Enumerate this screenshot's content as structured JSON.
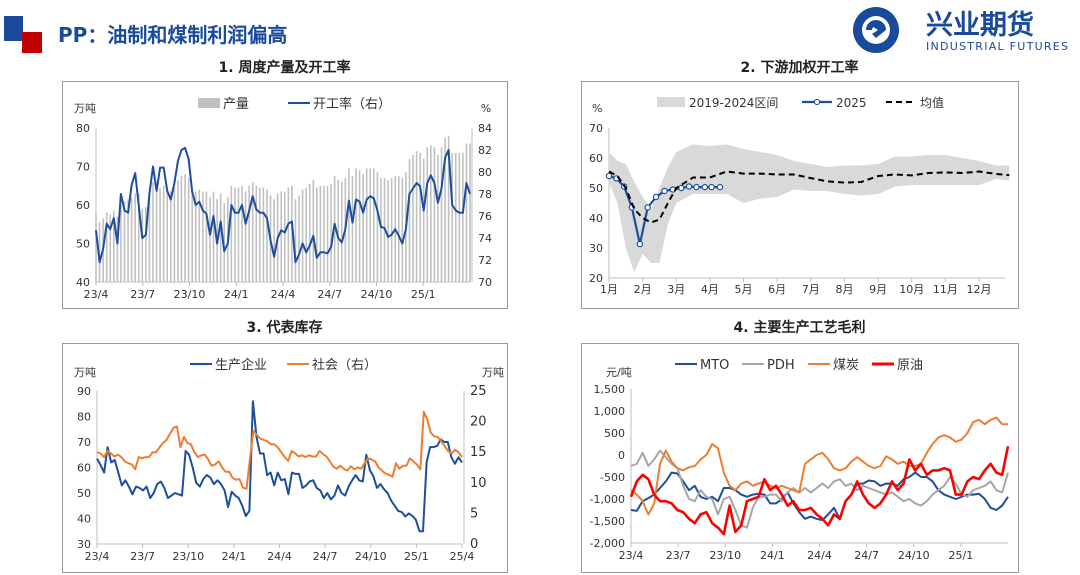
{
  "header": {
    "title": "PP：油制和煤制利润偏高",
    "logo_cn": "兴业期货",
    "logo_en": "INDUSTRIAL FUTURES",
    "colors": {
      "brand_blue": "#1a4a9c",
      "brand_red": "#c00000"
    }
  },
  "chart_data": [
    {
      "title": "1. 周度产量及开工率",
      "type": "bar+line",
      "ylabel": "万吨",
      "y2label": "%",
      "ylim": [
        40,
        80
      ],
      "yticks": [
        "80",
        "70",
        "60",
        "50",
        "40"
      ],
      "y2lim": [
        70,
        84
      ],
      "y2ticks": [
        "84",
        "82",
        "80",
        "78",
        "76",
        "74",
        "72",
        "70"
      ],
      "xticks": [
        "23/4",
        "23/7",
        "23/10",
        "24/1",
        "24/4",
        "24/7",
        "24/10",
        "25/1"
      ],
      "x_range": [
        "23/4",
        "25/4"
      ],
      "series": [
        {
          "name": "产量",
          "type": "bar",
          "axis": "left",
          "color": "#c0c0c0",
          "values": [
            58,
            55.5,
            56.5,
            58,
            57.5,
            58.5,
            57,
            60,
            61,
            61.5,
            62,
            63,
            63,
            59,
            59.5,
            62,
            66,
            64.5,
            64.5,
            65,
            64,
            63.5,
            64.5,
            66.5,
            67.5,
            68,
            67,
            64,
            63.5,
            64,
            63.5,
            63.5,
            62,
            63.5,
            61.5,
            63,
            60.5,
            62,
            65,
            64.5,
            64.5,
            65,
            63.5,
            65,
            66,
            65,
            64.5,
            64.5,
            64,
            62.5,
            61.5,
            63,
            63.5,
            63.5,
            64.5,
            65,
            61.5,
            62.5,
            64,
            64.5,
            65.5,
            66.5,
            64.5,
            65,
            65,
            65,
            65.5,
            67.5,
            66.5,
            66,
            67,
            69.5,
            67.5,
            69.5,
            69,
            68,
            69.5,
            69.5,
            69.5,
            68.5,
            67,
            67,
            66.5,
            67,
            67.5,
            67.5,
            67,
            68.5,
            72,
            73,
            74,
            73.5,
            72,
            75,
            75.5,
            75,
            73,
            75,
            77.5,
            78,
            73.5,
            73.5,
            73.5,
            73.5,
            76,
            76
          ]
        },
        {
          "name": "开工率（右）",
          "type": "line",
          "axis": "right",
          "color": "#1f4e9c",
          "values": [
            74.7,
            71.8,
            73,
            75.3,
            74.8,
            75.8,
            73.5,
            78,
            76.5,
            76.3,
            78.8,
            79.9,
            77,
            74,
            74.3,
            78,
            80.5,
            78.3,
            80.4,
            80.4,
            78.3,
            77.5,
            79,
            81,
            82,
            82.2,
            81.2,
            78.2,
            77,
            77.3,
            76.5,
            76.2,
            74.3,
            76,
            73.5,
            75.5,
            72.8,
            73.5,
            77,
            76.3,
            76.3,
            77,
            75.3,
            76.5,
            77.8,
            76.6,
            76.3,
            76.3,
            75.8,
            73.8,
            72.3,
            74,
            74.7,
            74.5,
            75.3,
            75.5,
            71.8,
            72.5,
            73.5,
            72.7,
            73.3,
            74.2,
            72.2,
            72.7,
            72.7,
            72.6,
            73.2,
            75.3,
            74,
            73.6,
            74.8,
            77.4,
            75.4,
            77.5,
            77.3,
            76.3,
            77.5,
            77.8,
            77.6,
            76.5,
            75,
            74.9,
            74.1,
            74.3,
            74.8,
            74.2,
            73.5,
            74.8,
            78,
            78.5,
            79,
            78.7,
            76.5,
            79,
            79.7,
            79,
            77.2,
            78.5,
            81.3,
            82,
            77,
            76.5,
            76.3,
            76.3,
            79,
            78
          ]
        }
      ]
    },
    {
      "title": "2. 下游加权开工率",
      "type": "line+band",
      "ylabel": "%",
      "ylim": [
        20,
        70
      ],
      "yticks": [
        "70",
        "60",
        "50",
        "40",
        "30",
        "20"
      ],
      "xticks": [
        "1月",
        "2月",
        "3月",
        "4月",
        "5月",
        "6月",
        "7月",
        "8月",
        "9月",
        "10月",
        "11月",
        "12月"
      ],
      "xlabel_unit": "month",
      "band": {
        "name": "2019-2024区间",
        "color": "#d9d9d9",
        "x": [
          1,
          1.25,
          1.5,
          1.75,
          2,
          2.25,
          2.5,
          2.75,
          3,
          3.5,
          4,
          4.5,
          5,
          5.5,
          6,
          6.5,
          7,
          7.5,
          8,
          8.5,
          9,
          9.5,
          10,
          10.5,
          11,
          11.5,
          12,
          12.5,
          12.9
        ],
        "upper": [
          62,
          59,
          58,
          52,
          47,
          43,
          50,
          57,
          62,
          64.5,
          64,
          64.5,
          63,
          62,
          61,
          59,
          58,
          57,
          57.5,
          57.5,
          58,
          60.5,
          60.5,
          61,
          61,
          60,
          59,
          57.5,
          57.5
        ],
        "lower": [
          52,
          45,
          30,
          22,
          28,
          25,
          25,
          38,
          45,
          48,
          48,
          48,
          45,
          46.5,
          47,
          49.5,
          49,
          49,
          48,
          47.5,
          48,
          50.5,
          51,
          51,
          51,
          51,
          51,
          53,
          52.5
        ]
      },
      "series": [
        {
          "name": "2025",
          "type": "line-marker",
          "color": "#1f4e9c",
          "x": [
            1,
            1.22,
            1.45,
            1.68,
            1.92,
            2.15,
            2.4,
            2.65,
            2.9,
            3.15,
            3.38,
            3.6,
            3.85,
            4.05,
            4.3
          ],
          "values": [
            54,
            53.2,
            50.5,
            43.5,
            31.3,
            43.5,
            47,
            49,
            49.5,
            50,
            50.5,
            50.3,
            50.3,
            50.3,
            50.3
          ]
        },
        {
          "name": "均值",
          "type": "dashed",
          "color": "#000000",
          "x": [
            1,
            1.25,
            1.5,
            1.75,
            2,
            2.25,
            2.5,
            2.75,
            3,
            3.5,
            4,
            4.5,
            5,
            5.5,
            6,
            6.5,
            7,
            7.5,
            8,
            8.5,
            9,
            9.5,
            10,
            10.5,
            11,
            11.5,
            12,
            12.5,
            12.9
          ],
          "values": [
            55.5,
            54,
            50,
            43,
            40,
            38.5,
            39.5,
            45,
            50,
            53.5,
            53.5,
            55.5,
            54.8,
            54.8,
            54.5,
            54.5,
            53.3,
            52.2,
            51.8,
            52,
            54,
            54.5,
            54.2,
            55,
            55.2,
            55,
            55.5,
            54.7,
            54.3
          ]
        }
      ]
    },
    {
      "title": "3. 代表库存",
      "type": "line",
      "ylabel": "万吨",
      "y2label": "万吨",
      "ylim": [
        30,
        90
      ],
      "yticks": [
        "90",
        "80",
        "70",
        "60",
        "50",
        "40",
        "30"
      ],
      "y2lim": [
        0,
        25
      ],
      "y2ticks": [
        "25",
        "20",
        "15",
        "10",
        "5",
        "0"
      ],
      "xticks": [
        "23/4",
        "23/7",
        "23/10",
        "24/1",
        "24/4",
        "24/7",
        "24/10",
        "25/1",
        "25/4"
      ],
      "x_range": [
        "23/4",
        "25/4"
      ],
      "series": [
        {
          "name": "生产企业",
          "axis": "left",
          "color": "#1f4e9c",
          "values": [
            63.5,
            61,
            58,
            68,
            62,
            63,
            58,
            53,
            55,
            52.5,
            49.5,
            52.5,
            52,
            51,
            52.5,
            48,
            50,
            53.5,
            54.5,
            52,
            48,
            49,
            50,
            49.5,
            49,
            66.5,
            65,
            60,
            54,
            52.5,
            55.5,
            57,
            56,
            53.5,
            55,
            53.5,
            51,
            44.5,
            50.5,
            49,
            48,
            45,
            41,
            43,
            86,
            72,
            65.5,
            65.5,
            57,
            58,
            53,
            58,
            55,
            55.5,
            49.5,
            58,
            57.5,
            57.5,
            52,
            53,
            54.5,
            55,
            52,
            51,
            48,
            50,
            47.5,
            49,
            53,
            50,
            49,
            52.5,
            55,
            57,
            55,
            54.5,
            65,
            59,
            56.5,
            52,
            53.5,
            51.5,
            50,
            47,
            45,
            43,
            42.5,
            40.8,
            42,
            41,
            39.5,
            35,
            35,
            62,
            68,
            68,
            68.5,
            71,
            70,
            70,
            64,
            61.5,
            64,
            62
          ]
        },
        {
          "name": "社会（右）",
          "axis": "right",
          "color": "#ed7d31",
          "values": [
            15,
            14.8,
            14.2,
            15.2,
            14.8,
            14.3,
            14.6,
            14.2,
            13.5,
            13.2,
            13,
            12.2,
            14.2,
            14,
            14.2,
            14.2,
            15,
            15,
            15.8,
            16.5,
            17,
            18,
            19,
            19.2,
            15.8,
            17.5,
            16.5,
            16.3,
            15,
            14.2,
            14.5,
            14.6,
            13.8,
            12.8,
            13,
            13.5,
            12.5,
            11.8,
            11.8,
            10.8,
            10.5,
            10.6,
            9.2,
            9,
            14,
            18.5,
            17.8,
            17.2,
            17,
            16.8,
            16.3,
            16.3,
            15.8,
            15,
            14.2,
            13.6,
            15.2,
            14.8,
            14.3,
            14.5,
            14.2,
            14.5,
            14.3,
            14.3,
            15.2,
            14.7,
            14.3,
            13.5,
            12.6,
            12.3,
            12.8,
            12.3,
            12,
            12.7,
            12.2,
            12.5,
            12.3,
            13.2,
            14,
            13.8,
            13.5,
            12.5,
            12,
            11.5,
            11.3,
            11,
            13.2,
            12.3,
            12.8,
            12.8,
            14,
            13.5,
            13,
            12.2,
            21.6,
            20.4,
            18.2,
            17.6,
            17.5,
            16.8,
            16,
            15.2,
            14.8,
            15.4,
            15,
            14.2
          ]
        }
      ]
    },
    {
      "title": "4. 主要生产工艺毛利",
      "type": "line",
      "ylabel": "元/吨",
      "ylim": [
        -2000,
        1500
      ],
      "yticks": [
        "1,500",
        "1,000",
        "500",
        "0",
        "-500",
        "-1,000",
        "-1,500",
        "-2,000"
      ],
      "xticks": [
        "23/4",
        "23/7",
        "23/10",
        "24/1",
        "24/4",
        "24/7",
        "24/10",
        "25/1"
      ],
      "x_range": [
        "23/4",
        "25/4"
      ],
      "series": [
        {
          "name": "MTO",
          "color": "#1f4e9c",
          "values": [
            -1250,
            -1270,
            -1050,
            -980,
            -900,
            -750,
            -600,
            -400,
            -420,
            -600,
            -800,
            -700,
            -950,
            -1000,
            -950,
            -1050,
            -750,
            -750,
            -800,
            -900,
            -950,
            -900,
            -880,
            -900,
            -1100,
            -1100,
            -1000,
            -850,
            -1100,
            -1300,
            -1450,
            -1400,
            -1450,
            -1480,
            -1350,
            -1200,
            -1450,
            -1050,
            -900,
            -650,
            -650,
            -580,
            -600,
            -700,
            -650,
            -650,
            -700,
            -550,
            -500,
            -400,
            -500,
            -500,
            -600,
            -800,
            -900,
            -950,
            -1000,
            -950,
            -900,
            -900,
            -880,
            -1000,
            -1200,
            -1250,
            -1150,
            -950
          ]
        },
        {
          "name": "PDH",
          "color": "#a6a6a6",
          "values": [
            -250,
            -200,
            50,
            -250,
            -100,
            100,
            -50,
            -200,
            -300,
            -700,
            -1000,
            -1050,
            -800,
            -950,
            -1000,
            -1350,
            -1000,
            -950,
            -1250,
            -1600,
            -1650,
            -1200,
            -950,
            -950,
            -900,
            -900,
            -1050,
            -850,
            -750,
            -850,
            -750,
            -850,
            -750,
            -650,
            -750,
            -600,
            -550,
            -700,
            -650,
            -800,
            -700,
            -750,
            -800,
            -850,
            -900,
            -850,
            -950,
            -1050,
            -1000,
            -1100,
            -1150,
            -1050,
            -900,
            -800,
            -700,
            -500,
            -650,
            -900,
            -950,
            -800,
            -750,
            -700,
            -600,
            -800,
            -850,
            -400
          ]
        },
        {
          "name": "煤炭",
          "color": "#ed7d31",
          "values": [
            -800,
            -900,
            -1050,
            -1350,
            -1100,
            -200,
            100,
            -150,
            -300,
            -350,
            -280,
            -250,
            -100,
            0,
            250,
            150,
            -400,
            -700,
            -800,
            -650,
            -600,
            -700,
            -650,
            -600,
            -700,
            -750,
            -700,
            -750,
            -800,
            -850,
            -200,
            -100,
            0,
            50,
            -100,
            -300,
            -350,
            -300,
            -150,
            -50,
            -150,
            -250,
            -300,
            -250,
            -30,
            -100,
            -200,
            -150,
            -250,
            -250,
            -200,
            50,
            250,
            400,
            450,
            400,
            300,
            350,
            500,
            750,
            800,
            700,
            800,
            850,
            700,
            700
          ]
        },
        {
          "name": "原油",
          "color": "#ff0000",
          "values": [
            -950,
            -600,
            -450,
            -550,
            -900,
            -1050,
            -1050,
            -1100,
            -1250,
            -1300,
            -1450,
            -1550,
            -1350,
            -1300,
            -1550,
            -1650,
            -1800,
            -1150,
            -1750,
            -1600,
            -1050,
            -1000,
            -950,
            -550,
            -800,
            -700,
            -900,
            -1150,
            -1050,
            -1250,
            -1250,
            -1200,
            -1350,
            -1450,
            -1600,
            -1350,
            -1450,
            -1050,
            -900,
            -600,
            -900,
            -1100,
            -1200,
            -1100,
            -900,
            -600,
            -800,
            -650,
            -100,
            -350,
            -200,
            -450,
            -350,
            -350,
            -300,
            -350,
            -900,
            -900,
            -600,
            -500,
            -550,
            -350,
            -200,
            -400,
            -450,
            200
          ]
        }
      ]
    }
  ]
}
